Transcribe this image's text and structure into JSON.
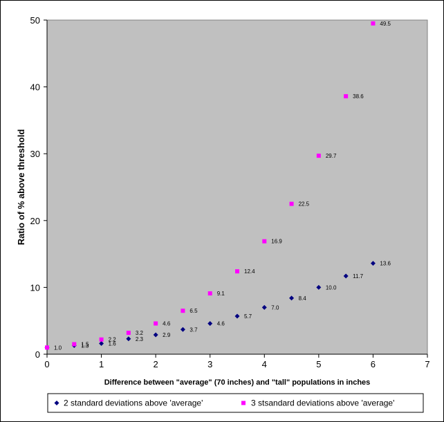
{
  "chart_data": {
    "type": "scatter",
    "title": "",
    "xlabel": "Difference between \"average\" (70 inches) and \"tall\" populations in inches",
    "ylabel": "Ratio of % above threshold",
    "xlim": [
      0,
      7
    ],
    "ylim": [
      0,
      50
    ],
    "xticks": [
      "0",
      "1",
      "2",
      "3",
      "4",
      "5",
      "6",
      "7"
    ],
    "yticks": [
      "0",
      "10",
      "20",
      "30",
      "40",
      "50"
    ],
    "grid": false,
    "plot_background": "#c0c0c0",
    "legend_position": "bottom",
    "series": [
      {
        "name": "2 standard deviations above 'average'",
        "marker": "diamond",
        "color": "#000080",
        "x": [
          0,
          0.5,
          1,
          1.5,
          2,
          2.5,
          3,
          3.5,
          4,
          4.5,
          5,
          5.5,
          6
        ],
        "values": [
          1.0,
          1.3,
          1.6,
          2.3,
          2.9,
          3.7,
          4.6,
          5.7,
          7.0,
          8.4,
          10.0,
          11.7,
          13.6
        ],
        "labels": [
          "",
          "1.3",
          "1.6",
          "2.3",
          "2.9",
          "3.7",
          "4.6",
          "5.7",
          "7.0",
          "8.4",
          "10.0",
          "11.7",
          "13.6"
        ]
      },
      {
        "name": "3 stsandard deviations above 'average'",
        "marker": "square",
        "color": "#ff00ff",
        "x": [
          0,
          0.5,
          1,
          1.5,
          2,
          2.5,
          3,
          3.5,
          4,
          4.5,
          5,
          5.5,
          6
        ],
        "values": [
          1.0,
          1.5,
          2.2,
          3.2,
          4.6,
          6.5,
          9.1,
          12.4,
          16.9,
          22.5,
          29.7,
          38.6,
          49.5
        ],
        "labels": [
          "1.0",
          "1.5",
          "2.2",
          "3.2",
          "4.6",
          "6.5",
          "9.1",
          "12.4",
          "16.9",
          "22.5",
          "29.7",
          "38.6",
          "49.5"
        ]
      }
    ]
  }
}
